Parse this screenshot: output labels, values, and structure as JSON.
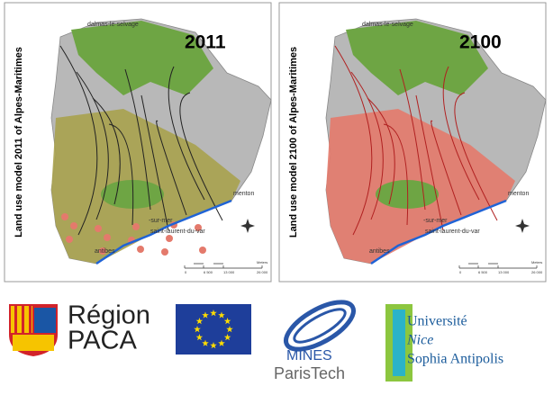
{
  "panels": [
    {
      "caption": "Land use model 2011 of Alpes-Maritimes",
      "year": "2011",
      "places": [
        "dalmas-le-selvage",
        "menton",
        "-sur-mer",
        "saint-laurent-du-var",
        "antibes"
      ],
      "scale": {
        "ticks": [
          "0",
          "6 500",
          "13 000",
          "26 000"
        ],
        "unit": "Meters"
      }
    },
    {
      "caption": "Land use model 2100 of Alpes-Maritimes",
      "year": "2100",
      "places": [
        "dalmas-le-selvage",
        "menton",
        "-sur-mer",
        "saint-laurent-du-var",
        "antibes"
      ],
      "scale": {
        "ticks": [
          "0",
          "6 500",
          "13 000",
          "26 000"
        ],
        "unit": "Meters"
      }
    }
  ],
  "logos": {
    "region": [
      "Région",
      "PACA"
    ],
    "mines": [
      "MINES",
      "ParisTech"
    ],
    "university": [
      "Université",
      "Nice",
      "Sophia Antipolis"
    ]
  }
}
